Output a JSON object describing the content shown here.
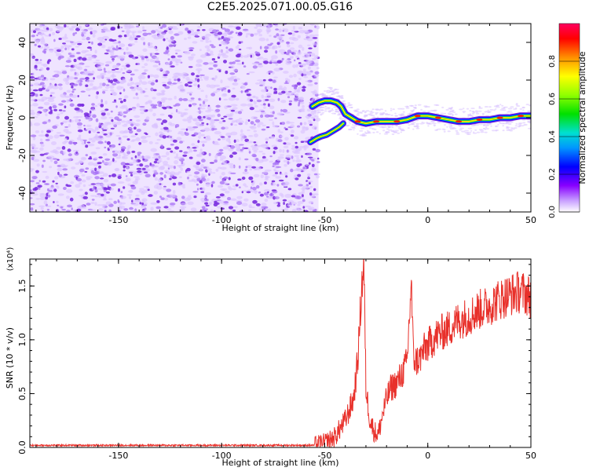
{
  "title": "C2E5.2025.071.00.05.G16",
  "colors": {
    "signal_line": "#e8302a",
    "noise_dot": "#7b2fe0",
    "axis": "#000000"
  },
  "chart_data": [
    {
      "type": "heatmap",
      "name": "spectrogram",
      "xlabel": "Height of straight line (km)",
      "ylabel": "Frequency (Hz)",
      "xlim": [
        -193,
        50
      ],
      "ylim": [
        -50,
        50
      ],
      "xticks": [
        -150,
        -100,
        -50,
        0,
        50
      ],
      "yticks": [
        -40,
        -20,
        0,
        20,
        40
      ],
      "noise_region_km": [
        -193,
        -53
      ],
      "signal_ridge": {
        "x": [
          -56,
          -53,
          -50,
          -47,
          -44,
          -42,
          -40,
          -37,
          -34,
          -30,
          -25,
          -20,
          -15,
          -10,
          -5,
          0,
          5,
          10,
          15,
          20,
          25,
          30,
          35,
          40,
          45,
          50
        ],
        "upper_branch": [
          6,
          8,
          9,
          9,
          8,
          6,
          2,
          0,
          -2,
          -3,
          -2,
          -2,
          -2,
          -1,
          1,
          1,
          0,
          -1,
          -2,
          -2,
          -1,
          -1,
          0,
          0,
          1,
          1
        ],
        "lower_branch_x": [
          -57,
          -54,
          -52,
          -49,
          -46,
          -43,
          -41
        ],
        "lower_branch": [
          -13,
          -11,
          -10,
          -9,
          -7,
          -5,
          -3
        ]
      },
      "colorbar": {
        "label": "Normalized spectral amplitude",
        "ticks": [
          "0.0",
          "0.2",
          "0.4",
          "0.6",
          "0.8"
        ],
        "range": [
          0,
          1
        ]
      }
    },
    {
      "type": "line",
      "name": "snr",
      "xlabel": "Height of straight line (km)",
      "ylabel": "SNR (10 * v/v)",
      "scale_label": "(x10⁴)",
      "xlim": [
        -193,
        50
      ],
      "ylim": [
        0,
        1.75
      ],
      "xticks": [
        -150,
        -100,
        -50,
        0,
        50
      ],
      "yticks": [
        "0.0",
        "0.5",
        "1.0",
        "1.5"
      ],
      "envelope": {
        "x": [
          -193,
          -100,
          -55,
          -50,
          -45,
          -40,
          -36,
          -34,
          -32,
          -31,
          -30,
          -28,
          -26,
          -24,
          -22,
          -20,
          -18,
          -15,
          -12,
          -10,
          -8,
          -7,
          -6,
          -4,
          -2,
          0,
          5,
          10,
          15,
          20,
          25,
          30,
          35,
          40,
          45,
          50
        ],
        "y": [
          0.02,
          0.02,
          0.02,
          0.04,
          0.1,
          0.25,
          0.45,
          0.8,
          1.5,
          1.72,
          0.55,
          0.25,
          0.15,
          0.12,
          0.3,
          0.45,
          0.55,
          0.6,
          0.7,
          0.8,
          1.55,
          0.85,
          0.8,
          0.82,
          0.9,
          0.95,
          1.05,
          1.1,
          1.18,
          1.22,
          1.28,
          1.32,
          1.38,
          1.42,
          1.45,
          1.4
        ]
      }
    }
  ]
}
